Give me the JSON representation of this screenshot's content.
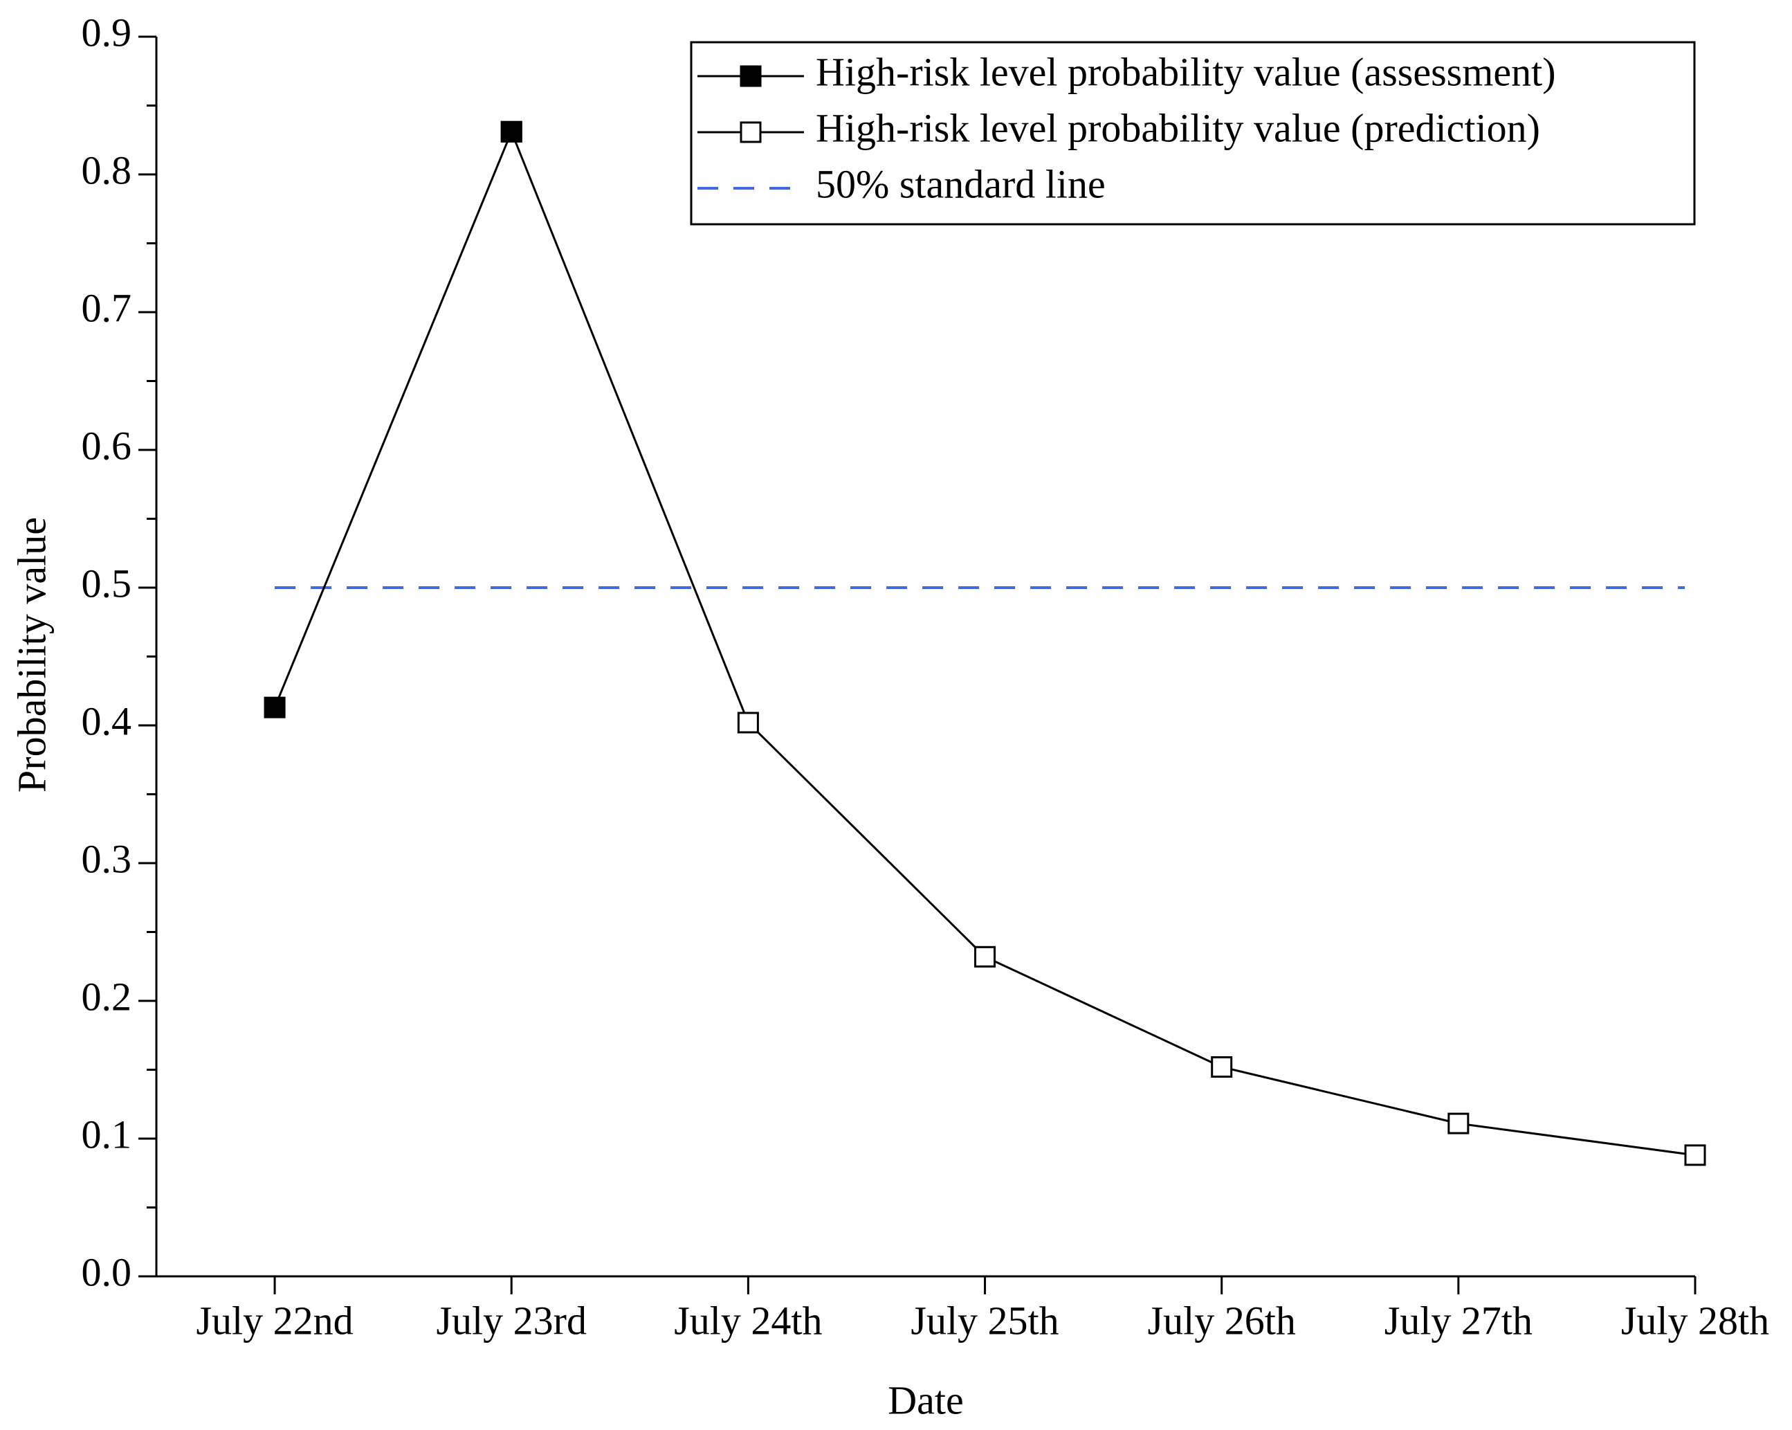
{
  "chart_data": {
    "type": "line",
    "x_label": "Date",
    "y_label": "Probability value",
    "categories": [
      "July 22nd",
      "July 23rd",
      "July 24th",
      "July 25th",
      "July 26th",
      "July 27th",
      "July 28th"
    ],
    "series": [
      {
        "name": "High-risk level probability value (prediction)",
        "color": "#000000",
        "marker": "open-square",
        "values": [
          null,
          0.831,
          0.402,
          0.232,
          0.152,
          0.111,
          0.088
        ]
      },
      {
        "name": "High-risk level probability value (assessment)",
        "color": "#000000",
        "marker": "filled-square",
        "values": [
          0.413,
          0.831,
          null,
          null,
          null,
          null,
          null
        ]
      }
    ],
    "reference_line": {
      "name": "50% standard line",
      "value": 0.5,
      "color": "#4169e1"
    },
    "ylim": [
      0,
      0.9
    ],
    "yticks": [
      {
        "value": 0,
        "label": "0.0"
      },
      0.1,
      0.2,
      0.3,
      0.4,
      0.5,
      0.6,
      0.7,
      0.8,
      0.9
    ],
    "legend": "upper right"
  }
}
